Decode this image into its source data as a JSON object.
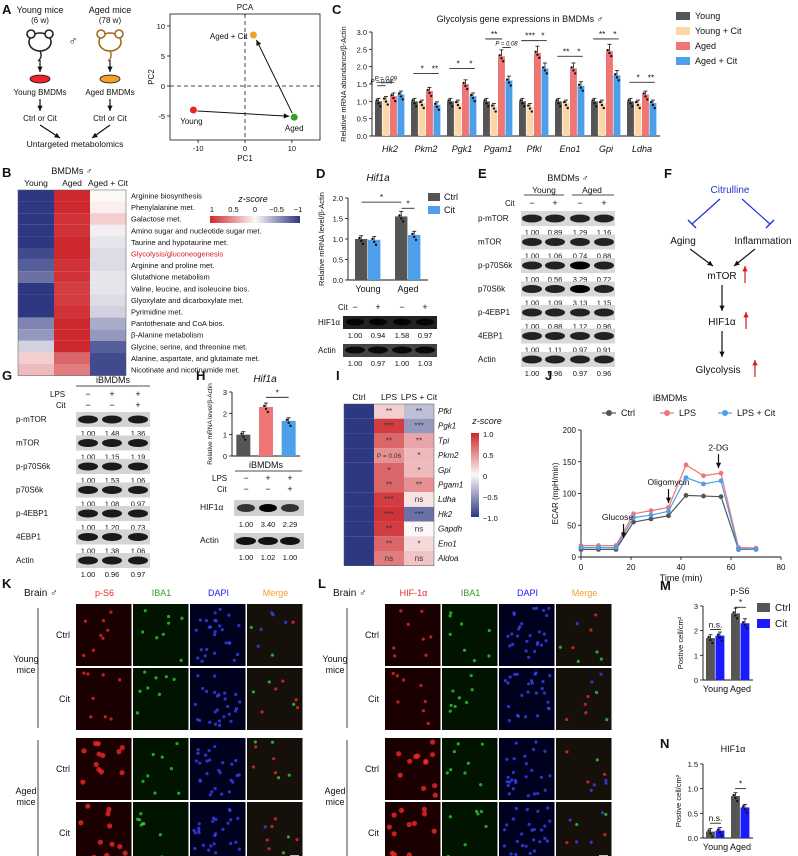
{
  "panel_labels": [
    "A",
    "B",
    "C",
    "D",
    "E",
    "F",
    "G",
    "H",
    "I",
    "J",
    "K",
    "L",
    "M",
    "N"
  ],
  "panel_a": {
    "young_label": "Young mice",
    "young_age": "(6 w)",
    "aged_label": "Aged mice",
    "aged_age": "(78 w)",
    "sex_symbol": "♂",
    "young_bmdm": "Young BMDMs",
    "aged_bmdm": "Aged BMDMs",
    "treat_young": "Ctrl or Cit",
    "treat_aged": "Ctrl or Cit",
    "untargeted": "Untargeted metabolomics",
    "pca": {
      "title": "PCA",
      "xlabel": "PC1",
      "ylabel": "PC2",
      "xticks": [
        "-10",
        "0",
        "10"
      ],
      "yticks": [
        "10",
        "5",
        "0",
        "-5"
      ],
      "points": [
        {
          "label": "Young",
          "x": -11,
          "y": -4,
          "color": "#e8262a"
        },
        {
          "label": "Aged",
          "x": 10.5,
          "y": -5.2,
          "color": "#2ca02c"
        },
        {
          "label": "Aged + Cit",
          "x": 1.8,
          "y": 8.5,
          "color": "#f2a02c"
        }
      ]
    }
  },
  "panel_b": {
    "title": "BMDMs ♂",
    "columns": [
      "Young",
      "Aged",
      "Aged + Cit"
    ],
    "zscore_title": "z-score",
    "zscore_ticks": [
      "1",
      "0.5",
      "0",
      "−0.5",
      "−1"
    ],
    "rows": [
      {
        "label": "Arginine biosynthesis",
        "values": [
          -1.0,
          1.0,
          0.0
        ],
        "highlight": false
      },
      {
        "label": "Phenylalanine met.",
        "values": [
          -1.0,
          1.0,
          0.05
        ],
        "highlight": false
      },
      {
        "label": "Galactose met.",
        "values": [
          -1.0,
          0.95,
          0.2
        ],
        "highlight": false
      },
      {
        "label": "Amino sugar and nucleotide sugar met.",
        "values": [
          -1.0,
          0.95,
          -0.05
        ],
        "highlight": false
      },
      {
        "label": "Taurine and hypotaurine met.",
        "values": [
          -1.0,
          1.0,
          -0.1
        ],
        "highlight": false
      },
      {
        "label": "Glycolysis/gluconeogenesis",
        "values": [
          -0.9,
          1.0,
          -0.15
        ],
        "highlight": true
      },
      {
        "label": "Arginine and proline met.",
        "values": [
          -0.8,
          0.95,
          -0.15
        ],
        "highlight": false
      },
      {
        "label": "Glutathione metabolism",
        "values": [
          -0.7,
          0.95,
          -0.1
        ],
        "highlight": false
      },
      {
        "label": "Valine, leucine, and isoleucine bios.",
        "values": [
          -1.0,
          0.9,
          -0.1
        ],
        "highlight": false
      },
      {
        "label": "Glyoxylate and dicarboxylate met.",
        "values": [
          -1.0,
          0.9,
          -0.15
        ],
        "highlight": false
      },
      {
        "label": "Pyrimidine met.",
        "values": [
          -1.0,
          0.95,
          -0.2
        ],
        "highlight": false
      },
      {
        "label": "Pantothenate and CoA bios.",
        "values": [
          -0.6,
          1.0,
          -0.4
        ],
        "highlight": false
      },
      {
        "label": "β-Alanine metabolism",
        "values": [
          -0.5,
          1.0,
          -0.5
        ],
        "highlight": false
      },
      {
        "label": "Glycine, serine, and threonine met.",
        "values": [
          -0.2,
          1.0,
          -0.8
        ],
        "highlight": false
      },
      {
        "label": "Alanine, aspartate, and glutamate met.",
        "values": [
          0.2,
          0.7,
          -0.9
        ],
        "highlight": false
      },
      {
        "label": "Nicotinate and nicotinamide met.",
        "values": [
          0.3,
          0.6,
          -0.9
        ],
        "highlight": false
      }
    ]
  },
  "chart_data": [
    {
      "panel": "C",
      "type": "bar",
      "title": "Glycolysis gene expressions in BMDMs ♂",
      "ylabel": "Relative mRNA abundance/β-Actin",
      "ylim": [
        0,
        3
      ],
      "yticks": [
        "0.0",
        "0.5",
        "1.0",
        "1.5",
        "2.0",
        "2.5",
        "3.0"
      ],
      "categories": [
        "Hk2",
        "Pkm2",
        "Pgk1",
        "Pgam1",
        "Pfkl",
        "Eno1",
        "Gpi",
        "Ldha"
      ],
      "series": [
        {
          "name": "Young",
          "color": "#555555",
          "values": [
            1.0,
            1.0,
            1.0,
            1.0,
            1.0,
            1.0,
            1.0,
            1.0
          ]
        },
        {
          "name": "Young + Cit",
          "color": "#fbd7a8",
          "values": [
            1.05,
            0.95,
            0.95,
            0.85,
            0.85,
            0.95,
            0.95,
            0.95
          ]
        },
        {
          "name": "Aged",
          "color": "#f07575",
          "values": [
            1.15,
            1.3,
            1.5,
            2.3,
            2.4,
            1.95,
            2.45,
            1.2
          ]
        },
        {
          "name": "Aged + Cit",
          "color": "#4c9fe8",
          "values": [
            1.2,
            0.9,
            1.15,
            1.6,
            1.95,
            1.45,
            1.75,
            0.95
          ]
        }
      ],
      "annotations": [
        "P = 0.08",
        "P = 0.09",
        "*",
        "**",
        "*",
        "*",
        "**",
        "P = 0.08",
        "*",
        "***",
        "*",
        "**",
        "*",
        "**",
        "*",
        "*",
        "**"
      ]
    },
    {
      "panel": "D",
      "type": "bar",
      "title": "Hif1a",
      "ylabel": "Relative mRNA level/β-Actin",
      "ylim": [
        0,
        2.0
      ],
      "yticks": [
        "0.0",
        "0.5",
        "1.0",
        "1.5",
        "2.0"
      ],
      "categories": [
        "Young",
        "Aged"
      ],
      "series": [
        {
          "name": "Ctrl",
          "color": "#555555",
          "values": [
            1.0,
            1.55
          ]
        },
        {
          "name": "Cit",
          "color": "#4c9fe8",
          "values": [
            0.98,
            1.1
          ]
        }
      ],
      "annotations": [
        "*",
        "*"
      ]
    },
    {
      "panel": "H",
      "type": "bar",
      "title": "Hif1a",
      "ylabel": "Relative mRNA level/β-Actin",
      "ylim": [
        0,
        3
      ],
      "yticks": [
        "0",
        "1",
        "2",
        "3"
      ],
      "categories": [
        "Ctrl",
        "LPS",
        "LPS + Cit"
      ],
      "values": [
        1.0,
        2.3,
        1.65
      ],
      "colors": [
        "#555555",
        "#f07575",
        "#4c9fe8"
      ],
      "annotations": [
        "*"
      ]
    },
    {
      "panel": "J",
      "type": "line",
      "title": "iBMDMs",
      "xlabel": "Time (min)",
      "ylabel": "ECAR (mpH/min)",
      "xlim": [
        0,
        80
      ],
      "ylim": [
        0,
        200
      ],
      "xticks": [
        "0",
        "20",
        "40",
        "60",
        "80"
      ],
      "yticks": [
        "0",
        "50",
        "100",
        "150",
        "200"
      ],
      "x": [
        0,
        7,
        14,
        21,
        28,
        35,
        42,
        49,
        56,
        63,
        70
      ],
      "series": [
        {
          "name": "Ctrl",
          "color": "#555555",
          "values": [
            12,
            12,
            12,
            55,
            60,
            65,
            97,
            96,
            95,
            12,
            12
          ]
        },
        {
          "name": "LPS",
          "color": "#f07575",
          "values": [
            18,
            18,
            18,
            68,
            73,
            78,
            145,
            128,
            132,
            15,
            14
          ]
        },
        {
          "name": "LPS + Cit",
          "color": "#4c9fe8",
          "values": [
            15,
            15,
            15,
            62,
            66,
            72,
            125,
            115,
            120,
            13,
            12
          ]
        }
      ],
      "annotations": [
        "Glucose",
        "Oligomycin",
        "2-DG"
      ]
    },
    {
      "panel": "M",
      "type": "bar",
      "title": "p-S6",
      "ylabel": "Postive cell/cm²",
      "ylim": [
        0,
        3
      ],
      "yticks": [
        "0",
        "1",
        "2",
        "3"
      ],
      "categories": [
        "Young",
        "Aged"
      ],
      "series": [
        {
          "name": "Ctrl",
          "color": "#555555",
          "values": [
            1.7,
            2.7
          ]
        },
        {
          "name": "Cit",
          "color": "#1a1aff",
          "values": [
            1.8,
            2.3
          ]
        }
      ],
      "annotations": [
        "n.s.",
        "*"
      ]
    },
    {
      "panel": "N",
      "type": "bar",
      "title": "HIF1α",
      "ylabel": "Postive cell/cm²",
      "ylim": [
        0,
        1.5
      ],
      "yticks": [
        "0.0",
        "0.5",
        "1.0",
        "1.5"
      ],
      "categories": [
        "Young",
        "Aged"
      ],
      "series": [
        {
          "name": "Ctrl",
          "color": "#555555",
          "values": [
            0.13,
            0.85
          ]
        },
        {
          "name": "Cit",
          "color": "#1a1aff",
          "values": [
            0.15,
            0.62
          ]
        }
      ],
      "annotations": [
        "n.s.",
        "*"
      ]
    }
  ],
  "panel_c_legend": [
    "Young",
    "Young + Cit",
    "Aged",
    "Aged + Cit"
  ],
  "panel_d": {
    "legend": [
      "Ctrl",
      "Cit"
    ],
    "blot_cit": "Cit",
    "signs": [
      "−",
      "+",
      "−",
      "+"
    ],
    "protein": "HIF1α",
    "loading": "Actin",
    "hif_values": [
      "1.00",
      "0.94",
      "1.58",
      "0.97"
    ],
    "actin_values": [
      "1.00",
      "0.97",
      "1.00",
      "1.03"
    ]
  },
  "panel_e": {
    "title": "BMDMs ♂",
    "groups": [
      "Young",
      "Aged"
    ],
    "cit": "Cit",
    "signs": [
      "−",
      "+",
      "−",
      "+"
    ],
    "rows": [
      {
        "protein": "p-mTOR",
        "values": [
          "1.00",
          "0.89",
          "1.29",
          "1.16"
        ]
      },
      {
        "protein": "mTOR",
        "values": [
          "1.00",
          "1.06",
          "0.74",
          "0.88"
        ]
      },
      {
        "protein": "p-p70S6k",
        "values": [
          "1.00",
          "0.56",
          "3.29",
          "0.72"
        ]
      },
      {
        "protein": "p70S6k",
        "values": [
          "1.00",
          "1.09",
          "3.13",
          "1.15"
        ]
      },
      {
        "protein": "p-4EBP1",
        "values": [
          "1.00",
          "0.88",
          "1.12",
          "0.96"
        ]
      },
      {
        "protein": "4EBP1",
        "values": [
          "1.00",
          "1.11",
          "0.97",
          "0.91"
        ]
      },
      {
        "protein": "Actin",
        "values": [
          "1.00",
          "0.96",
          "0.97",
          "0.96"
        ]
      }
    ]
  },
  "panel_f": {
    "citrulline": "Citrulline",
    "aging": "Aging",
    "inflammation": "Inflammation",
    "mtor": "mTOR",
    "hif": "HIF1α",
    "glycolysis": "Glycolysis"
  },
  "panel_g": {
    "title": "iBMDMs",
    "lps": "LPS",
    "cit": "Cit",
    "lps_signs": [
      "−",
      "+",
      "+"
    ],
    "cit_signs": [
      "−",
      "−",
      "+"
    ],
    "rows": [
      {
        "protein": "p-mTOR",
        "values": [
          "1.00",
          "1.48",
          "1.36"
        ]
      },
      {
        "protein": "mTOR",
        "values": [
          "1.00",
          "1.15",
          "1.19"
        ]
      },
      {
        "protein": "p-p70S6k",
        "values": [
          "1.00",
          "1.53",
          "1.06"
        ]
      },
      {
        "protein": "p70S6k",
        "values": [
          "1.00",
          "1.08",
          "0.97"
        ]
      },
      {
        "protein": "p-4EBP1",
        "values": [
          "1.00",
          "1.20",
          "0.73"
        ]
      },
      {
        "protein": "4EBP1",
        "values": [
          "1.00",
          "1.38",
          "1.06"
        ]
      },
      {
        "protein": "Actin",
        "values": [
          "1.00",
          "0.96",
          "0.97"
        ]
      }
    ]
  },
  "panel_h": {
    "blot_title": "iBMDMs",
    "lps": "LPS",
    "cit": "Cit",
    "lps_signs": [
      "−",
      "+",
      "+"
    ],
    "cit_signs": [
      "−",
      "−",
      "+"
    ],
    "protein": "HIF1α",
    "loading": "Actin",
    "hif_values": [
      "1.00",
      "3.40",
      "2.29"
    ],
    "actin_values": [
      "1.00",
      "1.02",
      "1.00"
    ]
  },
  "panel_i": {
    "columns": [
      "Ctrl",
      "LPS",
      "LPS + Cit"
    ],
    "zscore_title": "z-score",
    "zscore_ticks": [
      "1.0",
      "0.5",
      "0",
      "−0.5",
      "−1.0"
    ],
    "rows": [
      {
        "gene": "Pfkl",
        "values": [
          -1.0,
          0.2,
          -0.3
        ],
        "lps": "**",
        "cit": "**"
      },
      {
        "gene": "Pgk1",
        "values": [
          -1.0,
          0.9,
          -0.5
        ],
        "lps": "***",
        "cit": "***"
      },
      {
        "gene": "Tpi",
        "values": [
          -1.0,
          0.7,
          0.4
        ],
        "lps": "**",
        "cit": "**"
      },
      {
        "gene": "Pkm2",
        "values": [
          -1.0,
          0.5,
          0.3
        ],
        "lps": "P = 0.06",
        "cit": "*"
      },
      {
        "gene": "Gpi",
        "values": [
          -1.0,
          0.7,
          0.3
        ],
        "lps": "*",
        "cit": "*"
      },
      {
        "gene": "Pgam1",
        "values": [
          -1.0,
          0.7,
          0.5
        ],
        "lps": "**",
        "cit": "**"
      },
      {
        "gene": "Ldha",
        "values": [
          -1.0,
          0.9,
          0.1
        ],
        "lps": "***",
        "cit": "ns"
      },
      {
        "gene": "Hk2",
        "values": [
          -1.0,
          0.95,
          -0.7
        ],
        "lps": "***",
        "cit": "***"
      },
      {
        "gene": "Gapdh",
        "values": [
          -1.0,
          0.9,
          0.0
        ],
        "lps": "**",
        "cit": "ns"
      },
      {
        "gene": "Eno1",
        "values": [
          -1.0,
          0.7,
          0.15
        ],
        "lps": "**",
        "cit": "*"
      },
      {
        "gene": "Aldoa",
        "values": [
          -1.0,
          0.6,
          0.25
        ],
        "lps": "ns",
        "cit": "ns"
      }
    ]
  },
  "panel_k": {
    "tissue": "Brain ♂",
    "channels": [
      "p-S6",
      "IBA1",
      "DAPI",
      "Merge"
    ],
    "channel_colors": [
      "#e8262a",
      "#2ca02c",
      "#1a1aff",
      "#f2a02c"
    ],
    "groups": [
      "Young mice",
      "Aged mice"
    ],
    "rows": [
      "Ctrl",
      "Cit",
      "Ctrl",
      "Cit"
    ]
  },
  "panel_l": {
    "tissue": "Brain ♂",
    "channels": [
      "HIF-1α",
      "IBA1",
      "DAPI",
      "Merge"
    ],
    "channel_colors": [
      "#e8262a",
      "#2ca02c",
      "#1a1aff",
      "#f2a02c"
    ],
    "groups": [
      "Young mice",
      "Aged mice"
    ],
    "rows": [
      "Ctrl",
      "Cit",
      "Ctrl",
      "Cit"
    ]
  },
  "panel_m_legend": [
    "Ctrl",
    "Cit"
  ]
}
